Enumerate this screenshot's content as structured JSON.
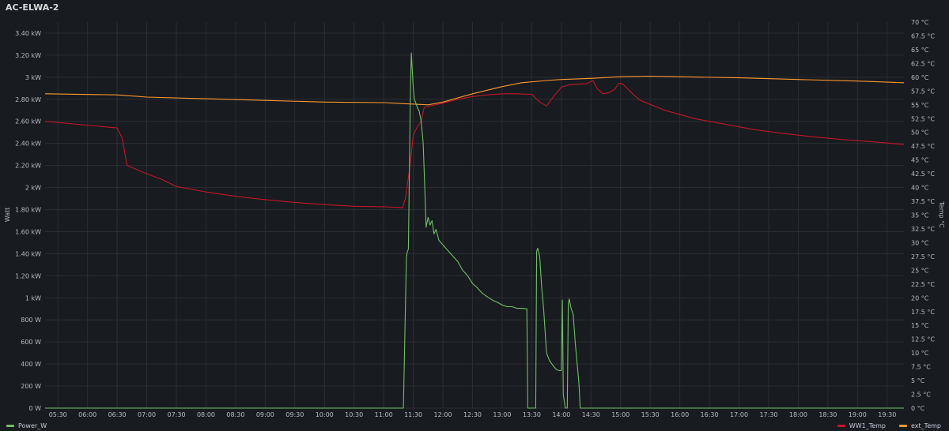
{
  "panel": {
    "title": "AC-ELWA-2"
  },
  "chart_data": {
    "type": "line",
    "title": "AC-ELWA-2",
    "y_left": {
      "label": "Watt",
      "range": [
        0,
        3500
      ],
      "ticks": [
        {
          "v": 0,
          "t": "0 W"
        },
        {
          "v": 200,
          "t": "200 W"
        },
        {
          "v": 400,
          "t": "400 W"
        },
        {
          "v": 600,
          "t": "600 W"
        },
        {
          "v": 800,
          "t": "800 W"
        },
        {
          "v": 1000,
          "t": "1 kW"
        },
        {
          "v": 1200,
          "t": "1.20 kW"
        },
        {
          "v": 1400,
          "t": "1.40 kW"
        },
        {
          "v": 1600,
          "t": "1.60 kW"
        },
        {
          "v": 1800,
          "t": "1.80 kW"
        },
        {
          "v": 2000,
          "t": "2 kW"
        },
        {
          "v": 2200,
          "t": "2.20 kW"
        },
        {
          "v": 2400,
          "t": "2.40 kW"
        },
        {
          "v": 2600,
          "t": "2.60 kW"
        },
        {
          "v": 2800,
          "t": "2.80 kW"
        },
        {
          "v": 3000,
          "t": "3 kW"
        },
        {
          "v": 3200,
          "t": "3.20 kW"
        },
        {
          "v": 3400,
          "t": "3.40 kW"
        }
      ]
    },
    "y_right": {
      "label": "Temp °C",
      "range": [
        0,
        70
      ],
      "ticks": [
        {
          "v": 0,
          "t": "0 °C"
        },
        {
          "v": 2.5,
          "t": "2.5 °C"
        },
        {
          "v": 5,
          "t": "5 °C"
        },
        {
          "v": 7.5,
          "t": "7.5 °C"
        },
        {
          "v": 10,
          "t": "10 °C"
        },
        {
          "v": 12.5,
          "t": "12.5 °C"
        },
        {
          "v": 15,
          "t": "15 °C"
        },
        {
          "v": 17.5,
          "t": "17.5 °C"
        },
        {
          "v": 20,
          "t": "20 °C"
        },
        {
          "v": 22.5,
          "t": "22.5 °C"
        },
        {
          "v": 25,
          "t": "25 °C"
        },
        {
          "v": 27.5,
          "t": "27.5 °C"
        },
        {
          "v": 30,
          "t": "30 °C"
        },
        {
          "v": 32.5,
          "t": "32.5 °C"
        },
        {
          "v": 35,
          "t": "35 °C"
        },
        {
          "v": 37.5,
          "t": "37.5 °C"
        },
        {
          "v": 40,
          "t": "40 °C"
        },
        {
          "v": 42.5,
          "t": "42.5 °C"
        },
        {
          "v": 45,
          "t": "45 °C"
        },
        {
          "v": 47.5,
          "t": "47.5 °C"
        },
        {
          "v": 50,
          "t": "50 °C"
        },
        {
          "v": 52.5,
          "t": "52.5 °C"
        },
        {
          "v": 55,
          "t": "55 °C"
        },
        {
          "v": 57.5,
          "t": "57.5 °C"
        },
        {
          "v": 60,
          "t": "60 °C"
        },
        {
          "v": 62.5,
          "t": "62.5 °C"
        },
        {
          "v": 65,
          "t": "65 °C"
        },
        {
          "v": 67.5,
          "t": "67.5 °C"
        },
        {
          "v": 70,
          "t": "70 °C"
        }
      ]
    },
    "x_ticks": [
      "05:30",
      "06:00",
      "06:30",
      "07:00",
      "07:30",
      "08:00",
      "08:30",
      "09:00",
      "09:30",
      "10:00",
      "10:30",
      "11:00",
      "11:30",
      "12:00",
      "12:30",
      "13:00",
      "13:30",
      "14:00",
      "14:30",
      "15:00",
      "15:30",
      "16:00",
      "16:30",
      "17:00",
      "17:30",
      "18:00",
      "18:30",
      "19:00",
      "19:30"
    ],
    "x_range": [
      "05:17",
      "19:47"
    ],
    "grid": true,
    "series": [
      {
        "name": "Power_W",
        "axis": "left",
        "color": "#73bf69",
        "points": [
          [
            "05:17",
            0
          ],
          [
            "11:20",
            0
          ],
          [
            "11:23",
            1370
          ],
          [
            "11:24",
            1420
          ],
          [
            "11:25",
            1440
          ],
          [
            "11:26",
            2100
          ],
          [
            "11:27",
            2850
          ],
          [
            "11:28",
            3220
          ],
          [
            "11:29",
            3050
          ],
          [
            "11:30",
            2900
          ],
          [
            "11:31",
            2800
          ],
          [
            "11:32",
            2780
          ],
          [
            "11:34",
            2730
          ],
          [
            "11:36",
            2690
          ],
          [
            "11:38",
            2600
          ],
          [
            "11:40",
            2400
          ],
          [
            "11:42",
            1900
          ],
          [
            "11:43",
            1640
          ],
          [
            "11:45",
            1730
          ],
          [
            "11:47",
            1660
          ],
          [
            "11:49",
            1700
          ],
          [
            "11:51",
            1580
          ],
          [
            "11:53",
            1620
          ],
          [
            "11:56",
            1520
          ],
          [
            "12:00",
            1480
          ],
          [
            "12:05",
            1430
          ],
          [
            "12:10",
            1380
          ],
          [
            "12:15",
            1330
          ],
          [
            "12:20",
            1250
          ],
          [
            "12:25",
            1200
          ],
          [
            "12:30",
            1130
          ],
          [
            "12:35",
            1090
          ],
          [
            "12:40",
            1040
          ],
          [
            "12:45",
            1010
          ],
          [
            "12:50",
            980
          ],
          [
            "12:55",
            960
          ],
          [
            "13:00",
            935
          ],
          [
            "13:05",
            920
          ],
          [
            "13:10",
            920
          ],
          [
            "13:15",
            905
          ],
          [
            "13:20",
            905
          ],
          [
            "13:25",
            900
          ],
          [
            "13:26",
            0
          ],
          [
            "13:34",
            0
          ],
          [
            "13:35",
            1420
          ],
          [
            "13:36",
            1450
          ],
          [
            "13:38",
            1380
          ],
          [
            "13:40",
            1100
          ],
          [
            "13:42",
            900
          ],
          [
            "13:45",
            500
          ],
          [
            "13:48",
            430
          ],
          [
            "13:52",
            380
          ],
          [
            "13:55",
            350
          ],
          [
            "13:58",
            340
          ],
          [
            "14:00",
            340
          ],
          [
            "14:01",
            980
          ],
          [
            "14:02",
            120
          ],
          [
            "14:04",
            0
          ],
          [
            "14:06",
            0
          ],
          [
            "14:07",
            950
          ],
          [
            "14:08",
            990
          ],
          [
            "14:10",
            900
          ],
          [
            "14:12",
            850
          ],
          [
            "14:14",
            600
          ],
          [
            "14:16",
            400
          ],
          [
            "14:17",
            300
          ],
          [
            "14:18",
            200
          ],
          [
            "14:19",
            0
          ],
          [
            "19:47",
            0
          ]
        ]
      },
      {
        "name": "WW1_Temp",
        "axis": "right",
        "color": "#c4162a",
        "points": [
          [
            "05:17",
            52
          ],
          [
            "06:30",
            50.8
          ],
          [
            "06:35",
            49
          ],
          [
            "06:40",
            44
          ],
          [
            "07:00",
            42.5
          ],
          [
            "07:15",
            41.5
          ],
          [
            "07:30",
            40.2
          ],
          [
            "08:00",
            39.2
          ],
          [
            "08:30",
            38.4
          ],
          [
            "09:00",
            37.8
          ],
          [
            "09:30",
            37.3
          ],
          [
            "10:00",
            36.9
          ],
          [
            "10:30",
            36.6
          ],
          [
            "11:00",
            36.5
          ],
          [
            "11:15",
            36.4
          ],
          [
            "11:19",
            36.3
          ],
          [
            "11:22",
            38
          ],
          [
            "11:26",
            43
          ],
          [
            "11:30",
            49.5
          ],
          [
            "11:34",
            51
          ],
          [
            "11:38",
            52
          ],
          [
            "11:41",
            54.5
          ],
          [
            "11:45",
            54.7
          ],
          [
            "12:00",
            55.3
          ],
          [
            "12:15",
            56
          ],
          [
            "12:30",
            56.5
          ],
          [
            "12:45",
            56.8
          ],
          [
            "13:00",
            57
          ],
          [
            "13:15",
            57
          ],
          [
            "13:30",
            56.9
          ],
          [
            "13:38",
            55.5
          ],
          [
            "13:45",
            54.8
          ],
          [
            "13:52",
            56.5
          ],
          [
            "14:00",
            58.2
          ],
          [
            "14:10",
            58.7
          ],
          [
            "14:25",
            58.8
          ],
          [
            "14:32",
            59.4
          ],
          [
            "14:36",
            58
          ],
          [
            "14:42",
            57
          ],
          [
            "14:48",
            57.2
          ],
          [
            "14:54",
            57.8
          ],
          [
            "14:58",
            58.9
          ],
          [
            "15:02",
            58.8
          ],
          [
            "15:06",
            58.1
          ],
          [
            "15:12",
            57
          ],
          [
            "15:20",
            55.8
          ],
          [
            "15:45",
            54
          ],
          [
            "16:15",
            52.5
          ],
          [
            "16:45",
            51.5
          ],
          [
            "17:15",
            50.5
          ],
          [
            "17:45",
            49.8
          ],
          [
            "18:15",
            49.2
          ],
          [
            "18:45",
            48.7
          ],
          [
            "19:15",
            48.3
          ],
          [
            "19:47",
            47.8
          ]
        ]
      },
      {
        "name": "ext_Temp",
        "axis": "right",
        "color": "#ff9830",
        "points": [
          [
            "05:17",
            57
          ],
          [
            "06:30",
            56.8
          ],
          [
            "07:00",
            56.4
          ],
          [
            "08:00",
            56.1
          ],
          [
            "09:00",
            55.8
          ],
          [
            "10:00",
            55.5
          ],
          [
            "11:00",
            55.4
          ],
          [
            "11:45",
            55
          ],
          [
            "12:00",
            55.5
          ],
          [
            "12:30",
            57
          ],
          [
            "13:00",
            58.3
          ],
          [
            "13:20",
            59
          ],
          [
            "13:45",
            59.4
          ],
          [
            "14:00",
            59.6
          ],
          [
            "14:30",
            59.8
          ],
          [
            "15:00",
            60.1
          ],
          [
            "15:30",
            60.2
          ],
          [
            "16:00",
            60.1
          ],
          [
            "17:00",
            59.9
          ],
          [
            "18:00",
            59.6
          ],
          [
            "19:00",
            59.3
          ],
          [
            "19:47",
            59
          ]
        ]
      }
    ],
    "legend_position": "bottom"
  }
}
